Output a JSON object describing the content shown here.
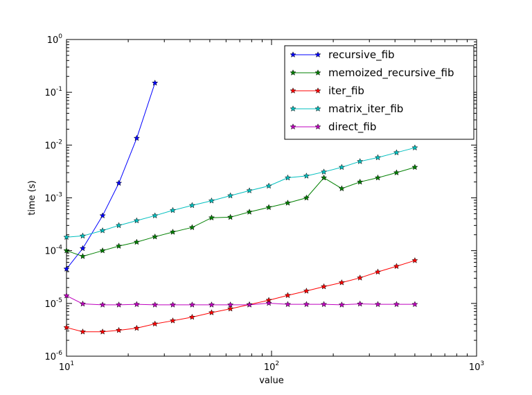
{
  "chart_data": {
    "type": "line",
    "title": "",
    "xlabel": "value",
    "ylabel": "time (s)",
    "xscale": "log",
    "yscale": "log",
    "xlim": [
      10,
      1000
    ],
    "ylim": [
      1e-06,
      1
    ],
    "grid": false,
    "legend_position": "top-right",
    "x_ticks": [
      {
        "value": 10,
        "base": "10",
        "exp": "1"
      },
      {
        "value": 100,
        "base": "10",
        "exp": "2"
      },
      {
        "value": 1000,
        "base": "10",
        "exp": "3"
      }
    ],
    "y_ticks": [
      {
        "value": 1e-06,
        "base": "10",
        "exp": "-6"
      },
      {
        "value": 1e-05,
        "base": "10",
        "exp": "-5"
      },
      {
        "value": 0.0001,
        "base": "10",
        "exp": "-4"
      },
      {
        "value": 0.001,
        "base": "10",
        "exp": "-3"
      },
      {
        "value": 0.01,
        "base": "10",
        "exp": "-2"
      },
      {
        "value": 0.1,
        "base": "10",
        "exp": "-1"
      },
      {
        "value": 1,
        "base": "10",
        "exp": "0"
      }
    ],
    "series": [
      {
        "name": "recursive_fib",
        "color": "#0000ff",
        "x": [
          10,
          12,
          15,
          18,
          22,
          27
        ],
        "y": [
          4.5e-05,
          0.00011,
          0.00046,
          0.0019,
          0.0135,
          0.15
        ]
      },
      {
        "name": "memoized_recursive_fib",
        "color": "#008000",
        "x": [
          10,
          12,
          15,
          18,
          22,
          27,
          33,
          41,
          51,
          63,
          78,
          97,
          120,
          148,
          180,
          220,
          270,
          330,
          407,
          500
        ],
        "y": [
          0.0001,
          7.8e-05,
          0.0001,
          0.000122,
          0.000145,
          0.000183,
          0.000225,
          0.000275,
          0.00042,
          0.00043,
          0.00054,
          0.00066,
          0.0008,
          0.001,
          0.0024,
          0.0015,
          0.002,
          0.0024,
          0.003,
          0.0038
        ]
      },
      {
        "name": "iter_fib",
        "color": "#ff0000",
        "x": [
          10,
          12,
          15,
          18,
          22,
          27,
          33,
          41,
          51,
          63,
          78,
          97,
          120,
          148,
          180,
          220,
          270,
          330,
          407,
          500
        ],
        "y": [
          3.5e-06,
          2.9e-06,
          2.9e-06,
          3.1e-06,
          3.4e-06,
          4.1e-06,
          4.7e-06,
          5.5e-06,
          6.7e-06,
          7.9e-06,
          9.5e-06,
          1.15e-05,
          1.42e-05,
          1.72e-05,
          2.08e-05,
          2.48e-05,
          3.05e-05,
          3.95e-05,
          5.05e-05,
          6.5e-05
        ]
      },
      {
        "name": "matrix_iter_fib",
        "color": "#00bfbf",
        "x": [
          10,
          12,
          15,
          18,
          22,
          27,
          33,
          41,
          51,
          63,
          78,
          97,
          120,
          148,
          180,
          220,
          270,
          330,
          407,
          500
        ],
        "y": [
          0.00018,
          0.00019,
          0.00024,
          0.0003,
          0.00037,
          0.00046,
          0.00058,
          0.00072,
          0.00088,
          0.0011,
          0.00137,
          0.00168,
          0.0024,
          0.0026,
          0.0031,
          0.0038,
          0.0049,
          0.0058,
          0.0072,
          0.0089
        ]
      },
      {
        "name": "direct_fib",
        "color": "#bf00bf",
        "x": [
          10,
          12,
          15,
          18,
          22,
          27,
          33,
          41,
          51,
          63,
          78,
          97,
          120,
          148,
          180,
          220,
          270,
          330,
          407,
          500
        ],
        "y": [
          1.4e-05,
          9.8e-06,
          9.4e-06,
          9.4e-06,
          9.6e-06,
          9.4e-06,
          9.4e-06,
          9.4e-06,
          9.4e-06,
          9.4e-06,
          9.4e-06,
          1.01e-05,
          9.6e-06,
          9.6e-06,
          9.6e-06,
          9.4e-06,
          9.8e-06,
          9.6e-06,
          9.6e-06,
          9.6e-06
        ]
      }
    ]
  }
}
